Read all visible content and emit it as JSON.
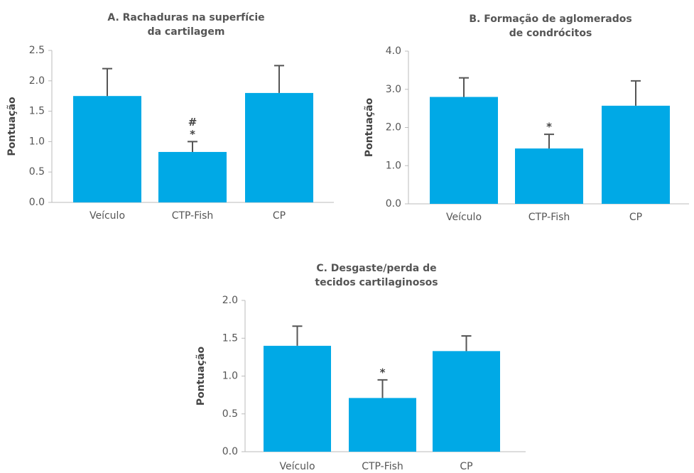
{
  "chart_data": [
    {
      "type": "bar",
      "title": [
        "A. Rachaduras na superfície",
        "da cartilagem"
      ],
      "y_label": "Pontuação",
      "categories": [
        "Veículo",
        "CTP-Fish",
        "CP"
      ],
      "values": [
        1.75,
        0.83,
        1.8
      ],
      "errors": [
        0.45,
        0.17,
        0.45
      ],
      "bar_labels": [
        null,
        [
          "#",
          "*"
        ],
        null
      ],
      "color": "#00a9e6",
      "ylim": [
        0,
        2.5
      ],
      "yticks": [
        {
          "value": 0,
          "label": "0.0"
        },
        0.5,
        {
          "value": 1,
          "label": "1.0"
        },
        1.5,
        {
          "value": 2,
          "label": "2.0"
        },
        2.5
      ]
    },
    {
      "type": "bar",
      "title": [
        "B. Formação de aglomerados",
        "de condrócitos"
      ],
      "y_label": "Pontuação",
      "categories": [
        "Veículo",
        "CTP-Fish",
        "CP"
      ],
      "values": [
        2.8,
        1.45,
        2.57
      ],
      "errors": [
        0.5,
        0.37,
        0.65
      ],
      "bar_labels": [
        null,
        [
          "*"
        ],
        null
      ],
      "color": "#00a9e6",
      "ylim": [
        0,
        4
      ],
      "yticks": [
        {
          "value": 0,
          "label": "0.0"
        },
        {
          "value": 1,
          "label": "1.0"
        },
        {
          "value": 2,
          "label": "2.0"
        },
        {
          "value": 3,
          "label": "3.0"
        },
        {
          "value": 4,
          "label": "4.0"
        }
      ]
    },
    {
      "type": "bar",
      "title": [
        "C. Desgaste/perda de",
        "tecidos cartilaginosos"
      ],
      "y_label": "Pontuação",
      "categories": [
        "Veículo",
        "CTP-Fish",
        "CP"
      ],
      "values": [
        1.4,
        0.71,
        1.33
      ],
      "errors": [
        0.26,
        0.24,
        0.2
      ],
      "bar_labels": [
        null,
        [
          "*"
        ],
        null
      ],
      "color": "#00a9e6",
      "ylim": [
        0,
        2
      ],
      "yticks": [
        {
          "value": 0,
          "label": "0.0"
        },
        0.5,
        {
          "value": 1,
          "label": "1.0"
        },
        1.5,
        {
          "value": 2,
          "label": "2.0"
        }
      ]
    }
  ]
}
